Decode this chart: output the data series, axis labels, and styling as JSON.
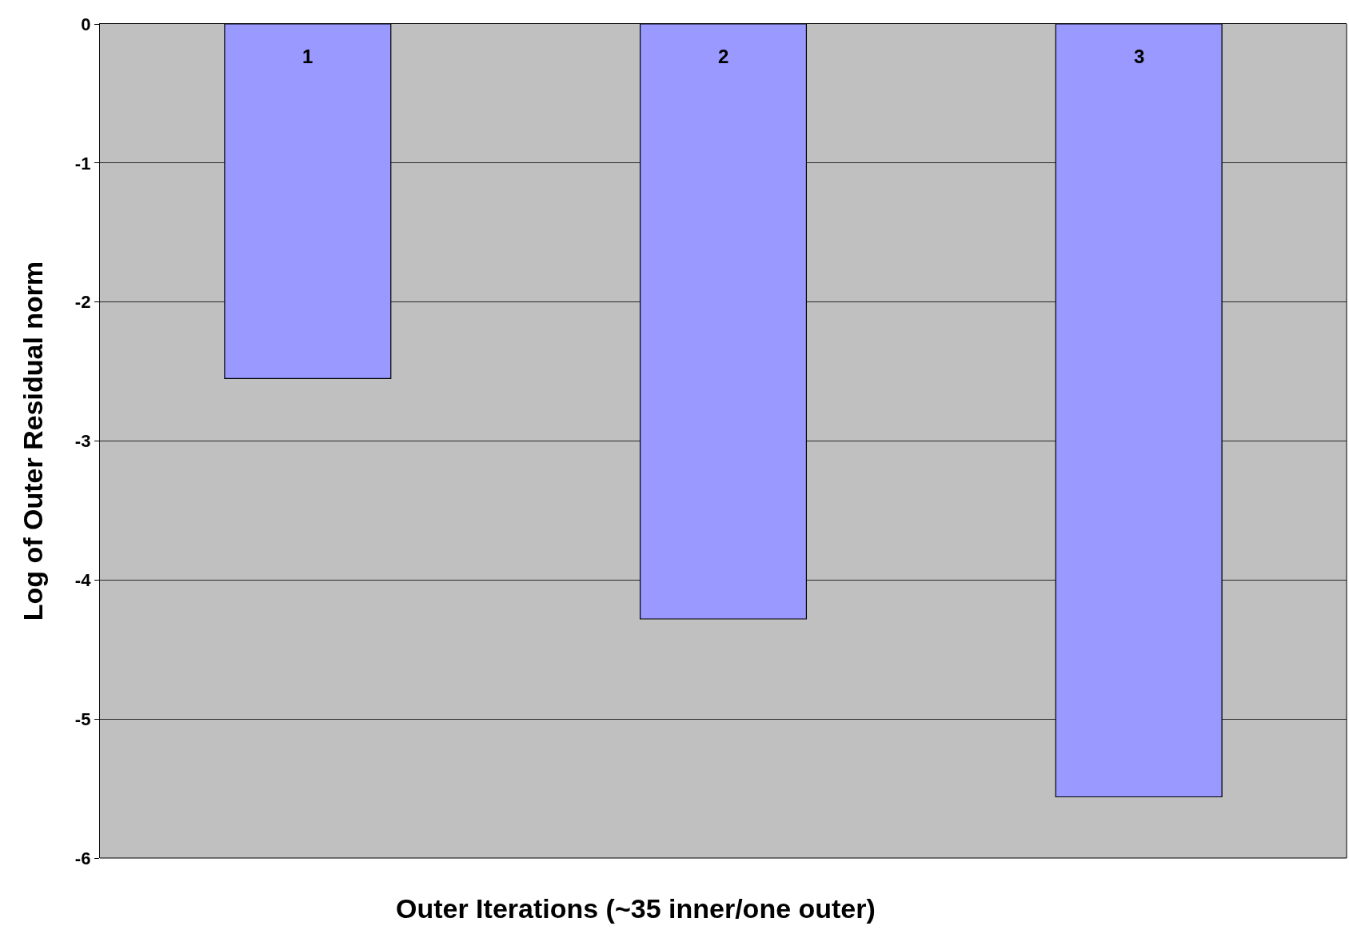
{
  "chart_data": {
    "type": "bar",
    "xlabel": "Outer Iterations (~35 inner/one outer)",
    "ylabel": "Log of Outer Residual norm",
    "categories": [
      "1",
      "2",
      "3"
    ],
    "values": [
      -2.55,
      -4.28,
      -5.56
    ],
    "color": "#9999ff",
    "ylim": [
      -6,
      0
    ],
    "yticks": [
      -6,
      -5,
      -4,
      -3,
      -2,
      -1,
      0
    ],
    "grid": "y",
    "legend": false
  }
}
